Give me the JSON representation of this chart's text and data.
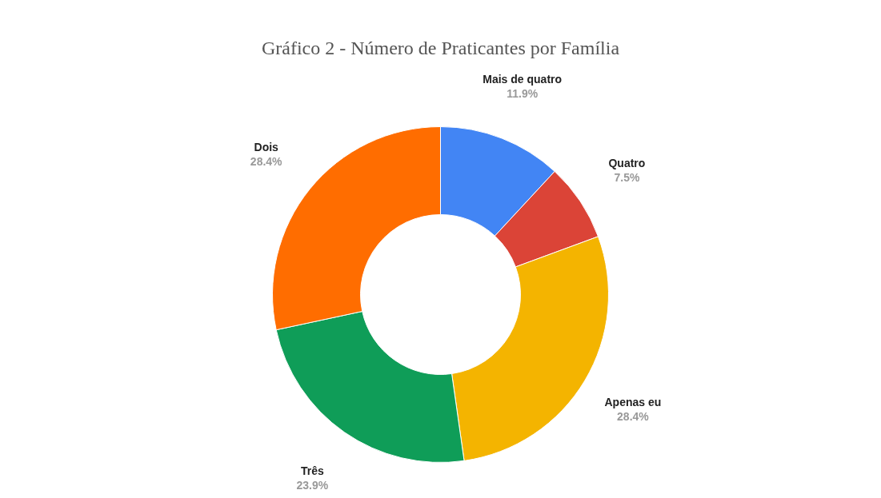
{
  "chart_data": {
    "type": "donut",
    "title": "Gráfico 2 - Número de Praticantes por Família",
    "categories": [
      "Mais de quatro",
      "Quatro",
      "Apenas eu",
      "Três",
      "Dois"
    ],
    "values": [
      11.9,
      7.5,
      28.4,
      23.9,
      28.4
    ],
    "value_labels": [
      "11.9%",
      "7.5%",
      "28.4%",
      "23.9%",
      "28.4%"
    ],
    "colors": [
      "#4285f4",
      "#db4437",
      "#f4b400",
      "#0f9d58",
      "#ff6d00"
    ],
    "legend": false
  }
}
